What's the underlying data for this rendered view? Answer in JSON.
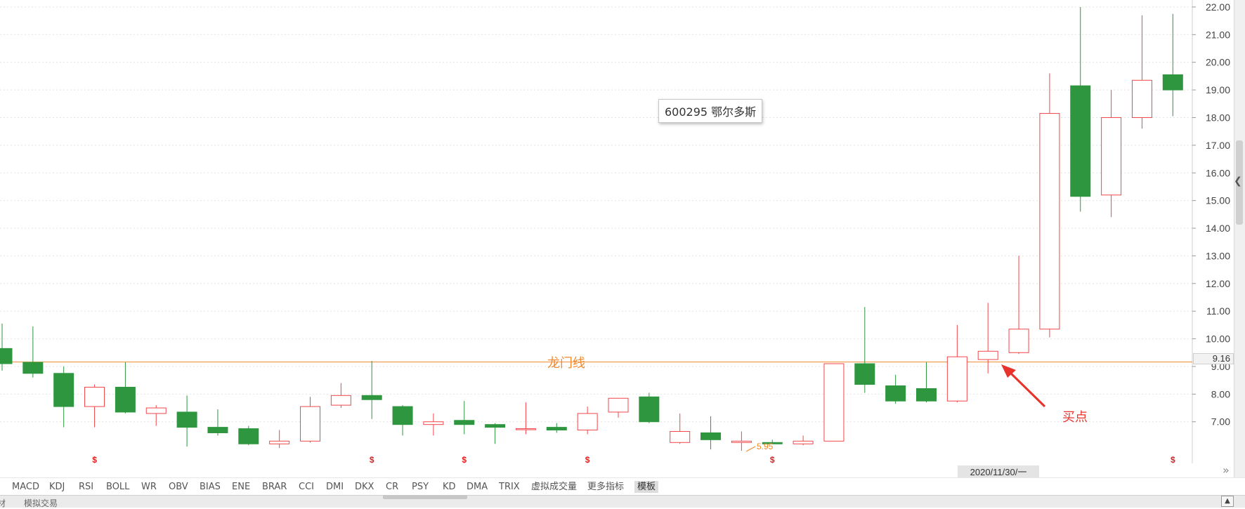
{
  "stock_label": "600295 鄂尔多斯",
  "dragon_line": {
    "label": "龙门线",
    "value": 9.16,
    "color": "#f08a2c"
  },
  "current_price_label": "9.16",
  "buy_point_label": "买点",
  "min_marker_label": "5.95",
  "crosshair_date": "2020/11/30/一",
  "expand_icon": "»",
  "event_marker": "$",
  "colors": {
    "up": "#f0464a",
    "down": "#2e963e",
    "grid": "#e4e4e4",
    "dragon": "#f08a2c",
    "arrow": "#e8322c"
  },
  "indicator_tabs": [
    "MACD",
    "KDJ",
    "RSI",
    "BOLL",
    "WR",
    "OBV",
    "BIAS",
    "ENE",
    "BRAR",
    "CCI",
    "DMI",
    "DKX",
    "CR",
    "PSY",
    "KD",
    "DMA",
    "TRIX",
    "虚拟成交量",
    "更多指标",
    "模板"
  ],
  "active_tab": "模板",
  "bottom_tabs": [
    "材",
    "模拟交易"
  ],
  "chart_data": {
    "type": "candlestick",
    "title": "600295 鄂尔多斯",
    "y_ticks": [
      "22.00",
      "21.00",
      "20.00",
      "19.00",
      "18.00",
      "17.00",
      "16.00",
      "15.00",
      "14.00",
      "13.00",
      "12.00",
      "11.00",
      "10.00",
      "9.00",
      "8.00",
      "7.00"
    ],
    "ylim": [
      5.8,
      22.1
    ],
    "grid": true,
    "reference_line": 9.16,
    "candles": [
      {
        "o": 9.65,
        "h": 10.55,
        "l": 8.85,
        "c": 9.1
      },
      {
        "o": 9.15,
        "h": 10.45,
        "l": 8.6,
        "c": 8.75
      },
      {
        "o": 8.75,
        "h": 9.0,
        "l": 6.8,
        "c": 7.55
      },
      {
        "o": 7.55,
        "h": 8.35,
        "l": 6.8,
        "c": 8.25
      },
      {
        "o": 8.25,
        "h": 9.15,
        "l": 7.3,
        "c": 7.35
      },
      {
        "o": 7.3,
        "h": 7.6,
        "l": 6.85,
        "c": 7.5
      },
      {
        "o": 7.35,
        "h": 7.95,
        "l": 6.1,
        "c": 6.8
      },
      {
        "o": 6.8,
        "h": 7.45,
        "l": 6.5,
        "c": 6.6
      },
      {
        "o": 6.75,
        "h": 6.85,
        "l": 6.15,
        "c": 6.2
      },
      {
        "o": 6.2,
        "h": 6.7,
        "l": 6.05,
        "c": 6.3
      },
      {
        "o": 6.3,
        "h": 7.9,
        "l": 6.25,
        "c": 7.55
      },
      {
        "o": 7.6,
        "h": 8.4,
        "l": 7.5,
        "c": 7.95
      },
      {
        "o": 7.95,
        "h": 9.2,
        "l": 7.1,
        "c": 7.8
      },
      {
        "o": 7.55,
        "h": 7.6,
        "l": 6.5,
        "c": 6.9
      },
      {
        "o": 6.9,
        "h": 7.3,
        "l": 6.5,
        "c": 7.0
      },
      {
        "o": 7.05,
        "h": 7.75,
        "l": 6.55,
        "c": 6.9
      },
      {
        "o": 6.9,
        "h": 6.95,
        "l": 6.2,
        "c": 6.8
      },
      {
        "o": 6.75,
        "h": 7.7,
        "l": 6.55,
        "c": 6.75
      },
      {
        "o": 6.8,
        "h": 6.95,
        "l": 6.6,
        "c": 6.7
      },
      {
        "o": 6.7,
        "h": 7.55,
        "l": 6.55,
        "c": 7.3
      },
      {
        "o": 7.35,
        "h": 7.85,
        "l": 7.15,
        "c": 7.85
      },
      {
        "o": 7.9,
        "h": 8.05,
        "l": 6.95,
        "c": 7.0
      },
      {
        "o": 6.25,
        "h": 7.3,
        "l": 6.2,
        "c": 6.65
      },
      {
        "o": 6.6,
        "h": 7.2,
        "l": 6.0,
        "c": 6.35
      },
      {
        "o": 6.25,
        "h": 6.65,
        "l": 5.95,
        "c": 6.3
      },
      {
        "o": 6.25,
        "h": 6.35,
        "l": 6.2,
        "c": 6.2
      },
      {
        "o": 6.2,
        "h": 6.5,
        "l": 6.15,
        "c": 6.3
      },
      {
        "o": 6.3,
        "h": 9.1,
        "l": 6.3,
        "c": 9.1
      },
      {
        "o": 9.1,
        "h": 11.15,
        "l": 8.05,
        "c": 8.35
      },
      {
        "o": 8.3,
        "h": 8.7,
        "l": 7.65,
        "c": 7.75
      },
      {
        "o": 8.2,
        "h": 9.15,
        "l": 7.7,
        "c": 7.75
      },
      {
        "o": 7.75,
        "h": 10.5,
        "l": 7.7,
        "c": 9.35
      },
      {
        "o": 9.25,
        "h": 11.3,
        "l": 8.75,
        "c": 9.55
      },
      {
        "o": 9.5,
        "h": 13.0,
        "l": 9.45,
        "c": 10.35
      },
      {
        "o": 10.35,
        "h": 19.6,
        "l": 10.05,
        "c": 18.15
      },
      {
        "o": 19.15,
        "h": 22.0,
        "l": 14.6,
        "c": 15.15
      },
      {
        "o": 15.2,
        "h": 19.0,
        "l": 14.4,
        "c": 18.0
      },
      {
        "o": 18.0,
        "h": 21.7,
        "l": 17.6,
        "c": 19.35
      },
      {
        "o": 19.55,
        "h": 21.75,
        "l": 18.05,
        "c": 19.0
      }
    ],
    "event_marker_indices": [
      3,
      12,
      15,
      19,
      25,
      38
    ]
  }
}
